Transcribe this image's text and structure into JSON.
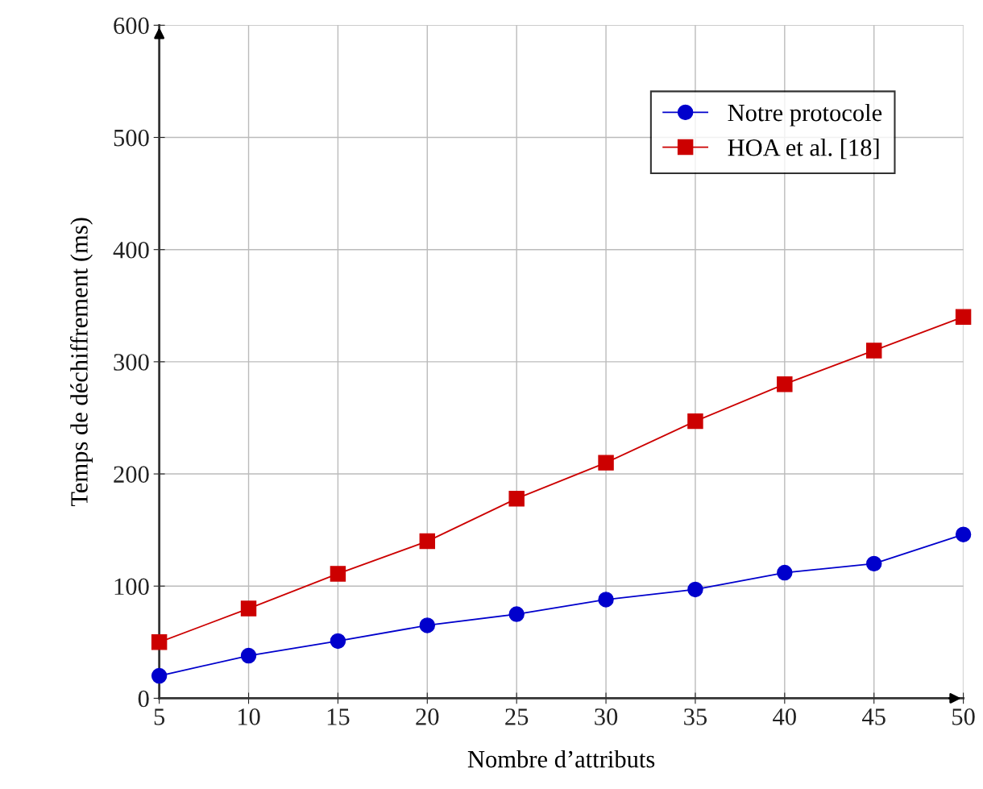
{
  "chart_data": {
    "type": "line",
    "xlabel": "Nombre d’attributs",
    "ylabel": "Temps de déchiffrement (ms)",
    "x": [
      5,
      10,
      15,
      20,
      25,
      30,
      35,
      40,
      45,
      50
    ],
    "series": [
      {
        "name": "Notre protocole",
        "color": "#0000cc",
        "marker": "circle",
        "values": [
          20,
          38,
          51,
          65,
          75,
          88,
          97,
          112,
          120,
          146
        ]
      },
      {
        "name": "HOA et al. [18]",
        "color": "#cc0000",
        "marker": "square",
        "values": [
          50,
          80,
          111,
          140,
          178,
          210,
          247,
          280,
          310,
          340
        ]
      }
    ],
    "xlim": [
      5,
      50
    ],
    "xticks": [
      5,
      10,
      15,
      20,
      25,
      30,
      35,
      40,
      45,
      50
    ],
    "ylim": [
      0,
      600
    ],
    "yticks": [
      0,
      100,
      200,
      300,
      400,
      500,
      600
    ],
    "grid": true,
    "legend": "top right",
    "line_style": "solid"
  }
}
